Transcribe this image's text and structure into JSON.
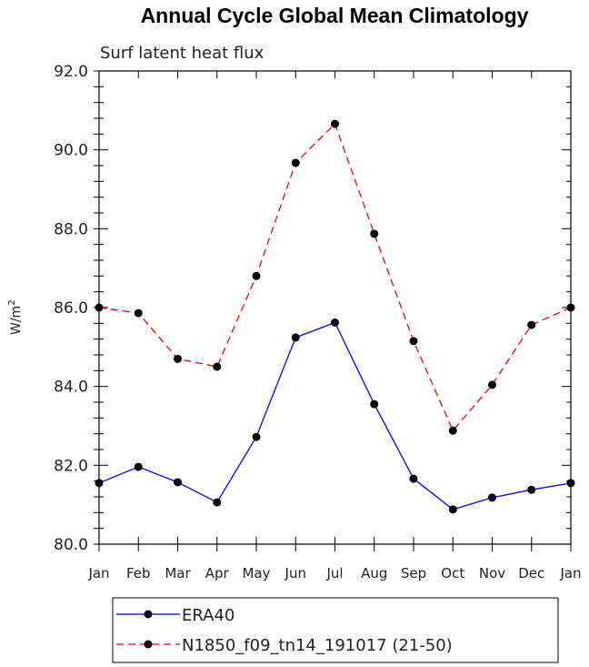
{
  "chart_data": {
    "type": "line",
    "title": "Annual Cycle Global Mean Climatology",
    "subtitle": "Surf latent heat flux",
    "xlabel": "",
    "ylabel": "W/m",
    "ylabel_superscript": "2",
    "ylim": [
      80.0,
      92.0
    ],
    "yticks": [
      "80.0",
      "82.0",
      "84.0",
      "86.0",
      "88.0",
      "90.0",
      "92.0"
    ],
    "categories": [
      "Jan",
      "Feb",
      "Mar",
      "Apr",
      "May",
      "Jun",
      "Jul",
      "Aug",
      "Sep",
      "Oct",
      "Nov",
      "Dec",
      "Jan"
    ],
    "series": [
      {
        "name": "ERA40",
        "color": "#0000ff",
        "dash": "solid",
        "values": [
          81.55,
          81.96,
          81.57,
          81.06,
          82.72,
          85.24,
          85.62,
          83.55,
          81.66,
          80.88,
          81.18,
          81.38,
          81.55
        ]
      },
      {
        "name": "N1850_f09_tn14_191017 (21-50)",
        "color": "#ff0000",
        "dash": "dashed",
        "values": [
          86.0,
          85.86,
          84.7,
          84.5,
          86.8,
          89.67,
          90.66,
          87.87,
          85.15,
          82.88,
          84.04,
          85.56,
          86.0
        ]
      }
    ],
    "legend": "bottom"
  }
}
